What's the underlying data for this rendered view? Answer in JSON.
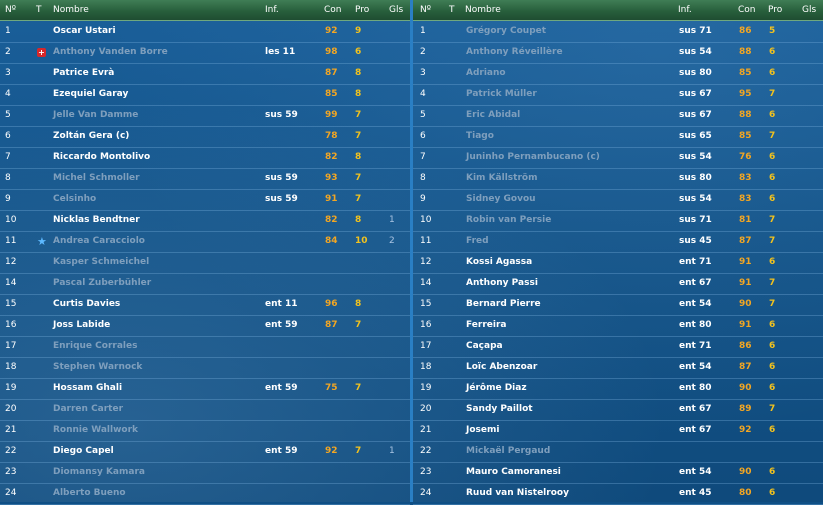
{
  "header": {
    "num": "Nº",
    "t": "T",
    "name": "Nombre",
    "inf": "Inf.",
    "con": "Con",
    "pro": "Pro",
    "gls": "Gls"
  },
  "left_rows": [
    {
      "num": "1",
      "name": "Oscar Ustari",
      "inf": "",
      "con": "92",
      "pro": "9",
      "gls": "",
      "dim": false,
      "icon": ""
    },
    {
      "num": "2",
      "name": "Anthony Vanden Borre",
      "inf": "les 11",
      "con": "98",
      "pro": "6",
      "gls": "",
      "dim": true,
      "icon": "medical-icon"
    },
    {
      "num": "3",
      "name": "Patrice Evrà",
      "inf": "",
      "con": "87",
      "pro": "8",
      "gls": "",
      "dim": false,
      "icon": ""
    },
    {
      "num": "4",
      "name": "Ezequiel Garay",
      "inf": "",
      "con": "85",
      "pro": "8",
      "gls": "",
      "dim": false,
      "icon": ""
    },
    {
      "num": "5",
      "name": "Jelle Van Damme",
      "inf": "sus 59",
      "con": "99",
      "pro": "7",
      "gls": "",
      "dim": true,
      "icon": ""
    },
    {
      "num": "6",
      "name": "Zoltán Gera (c)",
      "inf": "",
      "con": "78",
      "pro": "7",
      "gls": "",
      "dim": false,
      "icon": ""
    },
    {
      "num": "7",
      "name": "Riccardo Montolivo",
      "inf": "",
      "con": "82",
      "pro": "8",
      "gls": "",
      "dim": false,
      "icon": ""
    },
    {
      "num": "8",
      "name": "Michel Schmoller",
      "inf": "sus 59",
      "con": "93",
      "pro": "7",
      "gls": "",
      "dim": true,
      "icon": ""
    },
    {
      "num": "9",
      "name": "Celsinho",
      "inf": "sus 59",
      "con": "91",
      "pro": "7",
      "gls": "",
      "dim": true,
      "icon": ""
    },
    {
      "num": "10",
      "name": "Nicklas Bendtner",
      "inf": "",
      "con": "82",
      "pro": "8",
      "gls": "1",
      "dim": false,
      "icon": ""
    },
    {
      "num": "11",
      "name": "Andrea Caracciolo",
      "inf": "",
      "con": "84",
      "pro": "10",
      "gls": "2",
      "dim": true,
      "icon": "star-icon"
    },
    {
      "num": "12",
      "name": "Kasper Schmeichel",
      "inf": "",
      "con": "",
      "pro": "",
      "gls": "",
      "dim": true,
      "icon": ""
    },
    {
      "num": "14",
      "name": "Pascal Zuberbühler",
      "inf": "",
      "con": "",
      "pro": "",
      "gls": "",
      "dim": true,
      "icon": ""
    },
    {
      "num": "15",
      "name": "Curtis Davies",
      "inf": "ent 11",
      "con": "96",
      "pro": "8",
      "gls": "",
      "dim": false,
      "icon": ""
    },
    {
      "num": "16",
      "name": "Joss Labide",
      "inf": "ent 59",
      "con": "87",
      "pro": "7",
      "gls": "",
      "dim": false,
      "icon": ""
    },
    {
      "num": "17",
      "name": "Enrique Corrales",
      "inf": "",
      "con": "",
      "pro": "",
      "gls": "",
      "dim": true,
      "icon": ""
    },
    {
      "num": "18",
      "name": "Stephen Warnock",
      "inf": "",
      "con": "",
      "pro": "",
      "gls": "",
      "dim": true,
      "icon": ""
    },
    {
      "num": "19",
      "name": "Hossam Ghali",
      "inf": "ent 59",
      "con": "75",
      "pro": "7",
      "gls": "",
      "dim": false,
      "icon": ""
    },
    {
      "num": "20",
      "name": "Darren Carter",
      "inf": "",
      "con": "",
      "pro": "",
      "gls": "",
      "dim": true,
      "icon": ""
    },
    {
      "num": "21",
      "name": "Ronnie Wallwork",
      "inf": "",
      "con": "",
      "pro": "",
      "gls": "",
      "dim": true,
      "icon": ""
    },
    {
      "num": "22",
      "name": "Diego Capel",
      "inf": "ent 59",
      "con": "92",
      "pro": "7",
      "gls": "1",
      "dim": false,
      "icon": ""
    },
    {
      "num": "23",
      "name": "Diomansy Kamara",
      "inf": "",
      "con": "",
      "pro": "",
      "gls": "",
      "dim": true,
      "icon": ""
    },
    {
      "num": "24",
      "name": "Alberto Bueno",
      "inf": "",
      "con": "",
      "pro": "",
      "gls": "",
      "dim": true,
      "icon": ""
    }
  ],
  "right_rows": [
    {
      "num": "1",
      "name": "Grégory Coupet",
      "inf": "sus 71",
      "con": "86",
      "pro": "5",
      "gls": "",
      "dim": true
    },
    {
      "num": "2",
      "name": "Anthony Réveillère",
      "inf": "sus 54",
      "con": "88",
      "pro": "6",
      "gls": "",
      "dim": true
    },
    {
      "num": "3",
      "name": "Adriano",
      "inf": "sus 80",
      "con": "85",
      "pro": "6",
      "gls": "",
      "dim": true
    },
    {
      "num": "4",
      "name": "Patrick Müller",
      "inf": "sus 67",
      "con": "95",
      "pro": "7",
      "gls": "",
      "dim": true
    },
    {
      "num": "5",
      "name": "Eric Abidal",
      "inf": "sus 67",
      "con": "88",
      "pro": "6",
      "gls": "",
      "dim": true
    },
    {
      "num": "6",
      "name": "Tiago",
      "inf": "sus 65",
      "con": "85",
      "pro": "7",
      "gls": "",
      "dim": true
    },
    {
      "num": "7",
      "name": "Juninho Pernambucano (c)",
      "inf": "sus 54",
      "con": "76",
      "pro": "6",
      "gls": "",
      "dim": true
    },
    {
      "num": "8",
      "name": "Kim Källström",
      "inf": "sus 80",
      "con": "83",
      "pro": "6",
      "gls": "",
      "dim": true
    },
    {
      "num": "9",
      "name": "Sidney Govou",
      "inf": "sus 54",
      "con": "83",
      "pro": "6",
      "gls": "",
      "dim": true
    },
    {
      "num": "10",
      "name": "Robin van Persie",
      "inf": "sus 71",
      "con": "81",
      "pro": "7",
      "gls": "",
      "dim": true
    },
    {
      "num": "11",
      "name": "Fred",
      "inf": "sus 45",
      "con": "87",
      "pro": "7",
      "gls": "",
      "dim": true
    },
    {
      "num": "12",
      "name": "Kossi Agassa",
      "inf": "ent 71",
      "con": "91",
      "pro": "6",
      "gls": "",
      "dim": false
    },
    {
      "num": "14",
      "name": "Anthony Passi",
      "inf": "ent 67",
      "con": "91",
      "pro": "7",
      "gls": "",
      "dim": false
    },
    {
      "num": "15",
      "name": "Bernard Pierre",
      "inf": "ent 54",
      "con": "90",
      "pro": "7",
      "gls": "",
      "dim": false
    },
    {
      "num": "16",
      "name": "Ferreira",
      "inf": "ent 80",
      "con": "91",
      "pro": "6",
      "gls": "",
      "dim": false
    },
    {
      "num": "17",
      "name": "Caçapa",
      "inf": "ent 71",
      "con": "86",
      "pro": "6",
      "gls": "",
      "dim": false
    },
    {
      "num": "18",
      "name": "Loïc Abenzoar",
      "inf": "ent 54",
      "con": "87",
      "pro": "6",
      "gls": "",
      "dim": false
    },
    {
      "num": "19",
      "name": "Jérôme Diaz",
      "inf": "ent 80",
      "con": "90",
      "pro": "6",
      "gls": "",
      "dim": false
    },
    {
      "num": "20",
      "name": "Sandy Paillot",
      "inf": "ent 67",
      "con": "89",
      "pro": "7",
      "gls": "",
      "dim": false
    },
    {
      "num": "21",
      "name": "Josemi",
      "inf": "ent 67",
      "con": "92",
      "pro": "6",
      "gls": "",
      "dim": false
    },
    {
      "num": "22",
      "name": "Mickaël Pergaud",
      "inf": "",
      "con": "",
      "pro": "",
      "gls": "",
      "dim": true
    },
    {
      "num": "23",
      "name": "Mauro Camoranesi",
      "inf": "ent 54",
      "con": "90",
      "pro": "6",
      "gls": "",
      "dim": false
    },
    {
      "num": "24",
      "name": "Ruud van Nistelrooy",
      "inf": "ent 45",
      "con": "80",
      "pro": "6",
      "gls": "",
      "dim": false
    }
  ]
}
